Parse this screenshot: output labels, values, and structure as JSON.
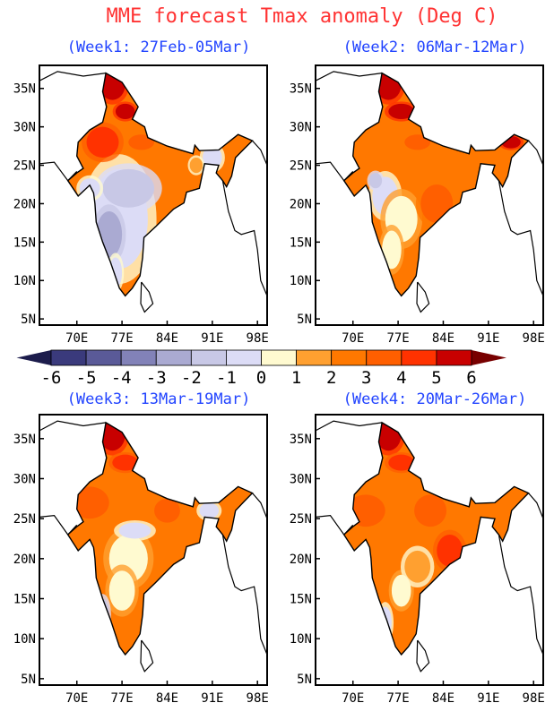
{
  "title": "MME forecast Tmax anomaly (Deg C)",
  "colors": {
    "title": "#ff3333",
    "subtitle": "#2244ff"
  },
  "panels": [
    {
      "title": "(Week1: 27Feb-05Mar)",
      "pattern": "cool south-central, warm north"
    },
    {
      "title": "(Week2: 06Mar-12Mar)",
      "pattern": "mostly warm, slight cool west"
    },
    {
      "title": "(Week3: 13Mar-19Mar)",
      "pattern": "warm, near-normal central"
    },
    {
      "title": "(Week4: 20Mar-26Mar)",
      "pattern": "widespread warm"
    }
  ],
  "axes": {
    "x_ticks": [
      "70E",
      "77E",
      "84E",
      "91E",
      "98E"
    ],
    "x_values": [
      70,
      77,
      84,
      91,
      98
    ],
    "y_ticks": [
      "5N",
      "10N",
      "15N",
      "20N",
      "25N",
      "30N",
      "35N"
    ],
    "y_values": [
      5,
      10,
      15,
      20,
      25,
      30,
      35
    ]
  },
  "colorbar": {
    "labels": [
      "-6",
      "-5",
      "-4",
      "-3",
      "-2",
      "-1",
      "0",
      "1",
      "2",
      "3",
      "4",
      "5",
      "6"
    ],
    "below_color": "#1c1c4c",
    "colors": [
      "#3a3a7c",
      "#5a5a98",
      "#8282b8",
      "#aaaad2",
      "#c8c8e6",
      "#dcdcf6",
      "#fffad0",
      "#ffa030",
      "#ff7800",
      "#ff5f00",
      "#ff3200",
      "#c80000"
    ],
    "above_color": "#780000"
  }
}
